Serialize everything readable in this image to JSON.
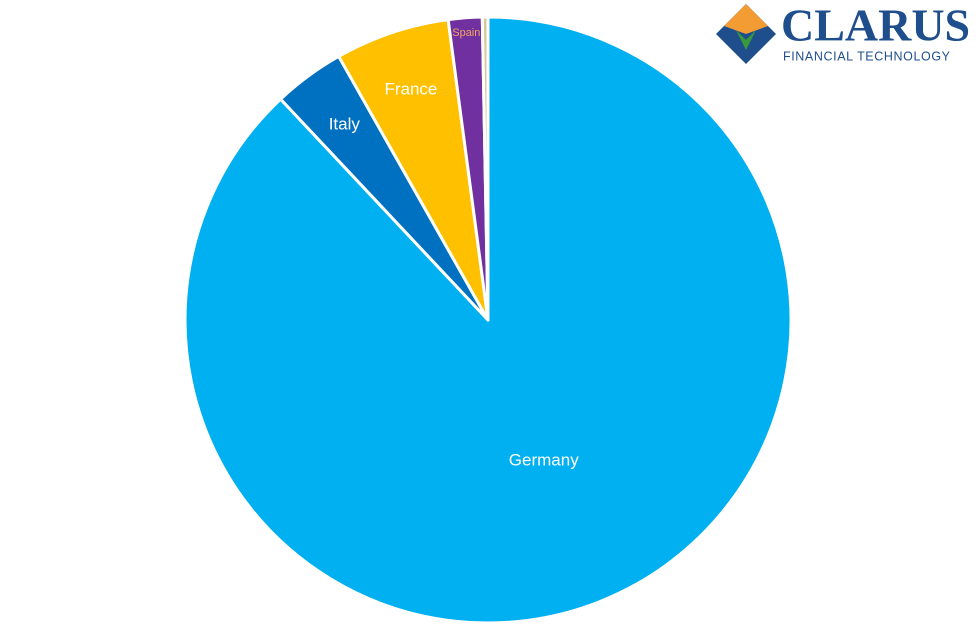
{
  "chart_data": {
    "type": "pie",
    "categories": [
      "Germany",
      "Italy",
      "France",
      "Spain",
      null
    ],
    "values": [
      88.0,
      3.8,
      6.1,
      1.8,
      0.3
    ],
    "colors": [
      "#00b0f0",
      "#0070c0",
      "#ffc000",
      "#7030a0",
      "#d8c89a"
    ]
  },
  "logo": {
    "name": "CLARUS",
    "tagline": "FINANCIAL TECHNOLOGY"
  }
}
